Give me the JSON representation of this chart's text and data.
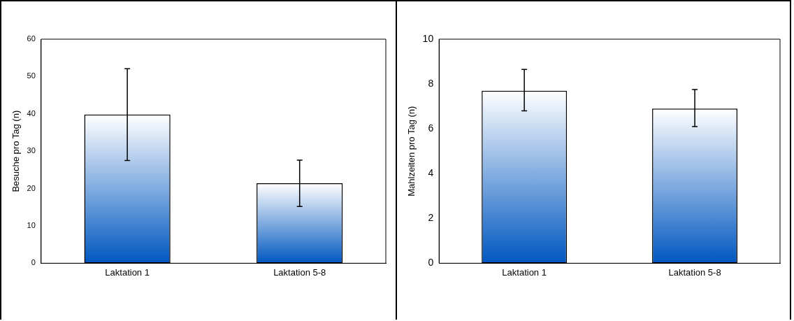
{
  "chart_data": [
    {
      "type": "bar",
      "ylabel": "Besuche pro Tag (n)",
      "categories": [
        "Laktation 1",
        "Laktation 5-8"
      ],
      "values": [
        39.8,
        21.4
      ],
      "errors": [
        [
          27.5,
          52.1
        ],
        [
          15.2,
          27.6
        ]
      ],
      "color": "#0057c0",
      "ylim": [
        0,
        60
      ],
      "yticks": [
        0,
        10,
        20,
        30,
        40,
        50,
        60
      ],
      "grid": false
    },
    {
      "type": "bar",
      "ylabel": "Mahlzeiten pro Tag (n)",
      "categories": [
        "Laktation 1",
        "Laktation 5-8"
      ],
      "values": [
        7.7,
        6.9
      ],
      "errors": [
        [
          6.8,
          8.65
        ],
        [
          6.1,
          7.75
        ]
      ],
      "color": "#0057c0",
      "ylim": [
        0,
        10
      ],
      "yticks": [
        0,
        2,
        4,
        6,
        8,
        10
      ],
      "grid": false
    }
  ]
}
